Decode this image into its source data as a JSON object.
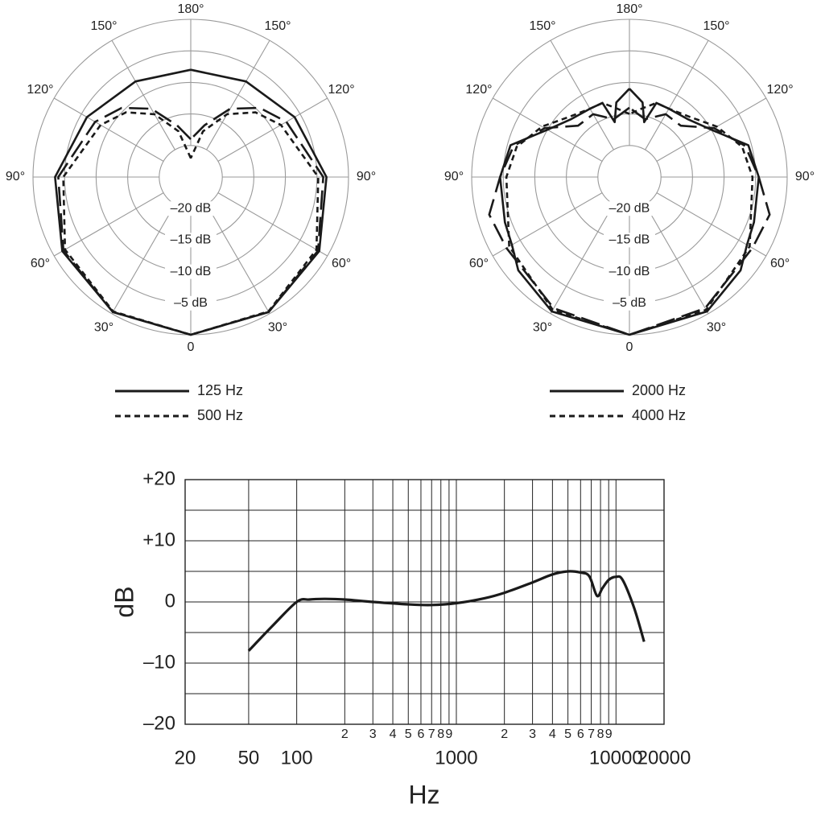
{
  "chart_data": [
    {
      "type": "polar",
      "angle_labels": [
        "180°",
        "150°",
        "150°",
        "120°",
        "120°",
        "90°",
        "90°",
        "60°",
        "60°",
        "30°",
        "30°",
        "0"
      ],
      "radial_labels": [
        "–20 dB",
        "–15 dB",
        "–10 dB",
        "–5 dB"
      ],
      "rlim": [
        -25,
        0
      ],
      "grid": true,
      "legend": [
        {
          "name": "125 Hz",
          "dash": "solid"
        },
        {
          "name": "500 Hz",
          "dash": "dotted"
        }
      ],
      "series": [
        {
          "style": "solid",
          "angles_deg": [
            0,
            30,
            60,
            90,
            120,
            150,
            180
          ],
          "values_db": [
            0,
            -0.3,
            -1.5,
            -3.5,
            -6,
            -7.5,
            -8
          ]
        },
        {
          "style": "long-dash",
          "angles_deg": [
            0,
            30,
            60,
            90,
            120,
            135,
            150,
            165,
            180
          ],
          "values_db": [
            0,
            -0.3,
            -1.7,
            -4,
            -7.5,
            -9.5,
            -12.5,
            -16.5,
            -19
          ]
        },
        {
          "style": "dotted",
          "angles_deg": [
            0,
            30,
            60,
            90,
            120,
            135,
            150,
            165,
            180
          ],
          "values_db": [
            0,
            -0.4,
            -2,
            -4.8,
            -8.5,
            -10.5,
            -13.5,
            -17.5,
            -22
          ]
        }
      ]
    },
    {
      "type": "polar",
      "angle_labels": [
        "180°",
        "150°",
        "150°",
        "120°",
        "120°",
        "90°",
        "90°",
        "60°",
        "60°",
        "30°",
        "30°",
        "0"
      ],
      "radial_labels": [
        "–20 dB",
        "–15 dB",
        "–10 dB",
        "–5 dB"
      ],
      "rlim": [
        -25,
        0
      ],
      "grid": true,
      "legend": [
        {
          "name": "2000 Hz",
          "dash": "solid"
        },
        {
          "name": "4000 Hz",
          "dash": "dotted"
        }
      ],
      "series": [
        {
          "style": "solid",
          "angles_deg": [
            0,
            30,
            50,
            60,
            70,
            90,
            105,
            120,
            135,
            150,
            160,
            165,
            170,
            180
          ],
          "values_db": [
            0,
            -0.4,
            -2,
            -3.5,
            -4,
            -4.5,
            -5.5,
            -10,
            -12,
            -12.5,
            -12.5,
            -16,
            -13,
            -11
          ]
        },
        {
          "style": "long-dash",
          "angles_deg": [
            0,
            30,
            60,
            75,
            90,
            105,
            120,
            135,
            150,
            165,
            180
          ],
          "values_db": [
            0,
            -1,
            -2.5,
            -2,
            -4.5,
            -6,
            -9.5,
            -13.5,
            -13.5,
            -15.5,
            -14
          ]
        },
        {
          "style": "dotted",
          "angles_deg": [
            0,
            30,
            60,
            90,
            105,
            120,
            135,
            150,
            160,
            170,
            180
          ],
          "values_db": [
            0,
            -0.7,
            -3,
            -5.5,
            -6.5,
            -9,
            -11.5,
            -12.5,
            -12.5,
            -14,
            -15
          ]
        }
      ]
    },
    {
      "type": "line",
      "xscale": "log",
      "xlabel": "Hz",
      "ylabel": "dB",
      "xlim": [
        20,
        20000
      ],
      "ylim": [
        -20,
        20
      ],
      "y_ticks": [
        {
          "value": 20,
          "label": "+20"
        },
        {
          "value": 10,
          "label": "+10"
        },
        {
          "value": 0,
          "label": "0"
        },
        {
          "value": -10,
          "label": "–10"
        },
        {
          "value": -20,
          "label": "–20"
        }
      ],
      "x_tick_labels": [
        {
          "value": 20,
          "label": "20"
        },
        {
          "value": 50,
          "label": "50"
        },
        {
          "value": 100,
          "label": "100"
        },
        {
          "value": 1000,
          "label": "1000"
        },
        {
          "value": 10000,
          "label": "10000"
        },
        {
          "value": 20000,
          "label": "20000"
        }
      ],
      "x_minor_labels": [
        {
          "value": 200,
          "label": "2"
        },
        {
          "value": 300,
          "label": "3"
        },
        {
          "value": 400,
          "label": "4"
        },
        {
          "value": 500,
          "label": "5"
        },
        {
          "value": 600,
          "label": "6"
        },
        {
          "value": 700,
          "label": "7"
        },
        {
          "value": 800,
          "label": "8"
        },
        {
          "value": 900,
          "label": "9"
        },
        {
          "value": 2000,
          "label": "2"
        },
        {
          "value": 3000,
          "label": "3"
        },
        {
          "value": 4000,
          "label": "4"
        },
        {
          "value": 5000,
          "label": "5"
        },
        {
          "value": 6000,
          "label": "6"
        },
        {
          "value": 7000,
          "label": "7"
        },
        {
          "value": 8000,
          "label": "8"
        },
        {
          "value": 9000,
          "label": "9"
        }
      ],
      "grid": true,
      "series": [
        {
          "x": [
            50,
            70,
            100,
            120,
            150,
            200,
            300,
            500,
            700,
            1000,
            1500,
            2000,
            3000,
            4000,
            5000,
            6000,
            6800,
            7600,
            8200,
            9000,
            10000,
            11000,
            13000,
            15000
          ],
          "y": [
            -8,
            -4,
            0,
            0.4,
            0.5,
            0.4,
            0,
            -0.4,
            -0.5,
            -0.2,
            0.6,
            1.5,
            3.2,
            4.5,
            5,
            4.8,
            4.2,
            1,
            2.2,
            3.6,
            4.1,
            3.6,
            -1,
            -6.5
          ]
        }
      ]
    }
  ]
}
